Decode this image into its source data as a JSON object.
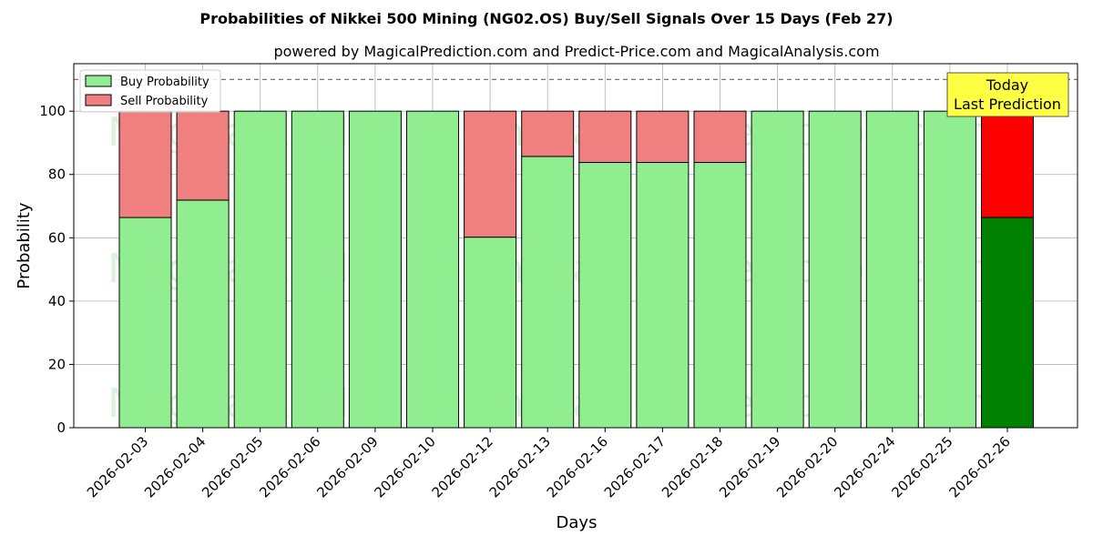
{
  "chart_data": {
    "type": "bar",
    "stacked": true,
    "title": "Probabilities of Nikkei 500 Mining (NG02.OS) Buy/Sell Signals Over 15 Days (Feb 27)",
    "subtitle": "powered by MagicalPrediction.com and Predict-Price.com and MagicalAnalysis.com",
    "xlabel": "Days",
    "ylabel": "Probability",
    "ylim": [
      0,
      115
    ],
    "yticks": [
      0,
      20,
      40,
      60,
      80,
      100
    ],
    "reference_line": 110,
    "grid": true,
    "legend_position": "top-left",
    "categories": [
      "2026-02-03",
      "2026-02-04",
      "2026-02-05",
      "2026-02-06",
      "2026-02-09",
      "2026-02-10",
      "2026-02-12",
      "2026-02-13",
      "2026-02-16",
      "2026-02-17",
      "2026-02-18",
      "2026-02-19",
      "2026-02-20",
      "2026-02-24",
      "2026-02-25",
      "2026-02-26"
    ],
    "series": [
      {
        "name": "Buy Probability",
        "color": "#90ee90",
        "values": [
          66.4,
          71.9,
          100,
          100,
          100,
          100,
          60.2,
          85.7,
          83.8,
          83.8,
          83.8,
          100,
          100,
          100,
          100,
          66.4
        ]
      },
      {
        "name": "Sell Probability",
        "color": "#f08080",
        "values": [
          33.6,
          28.1,
          0,
          0,
          0,
          0,
          39.8,
          14.3,
          16.2,
          16.2,
          16.2,
          0,
          0,
          0,
          0,
          33.6
        ]
      }
    ],
    "highlight": {
      "index": 15,
      "buy_color": "#008000",
      "sell_color": "#ff0000"
    },
    "annotation": {
      "line1": "Today",
      "line2": "Last Prediction",
      "color": "#ffff44"
    },
    "watermarks": [
      "MagicalAnalysis.com",
      "MagicalPrediction.com"
    ]
  }
}
